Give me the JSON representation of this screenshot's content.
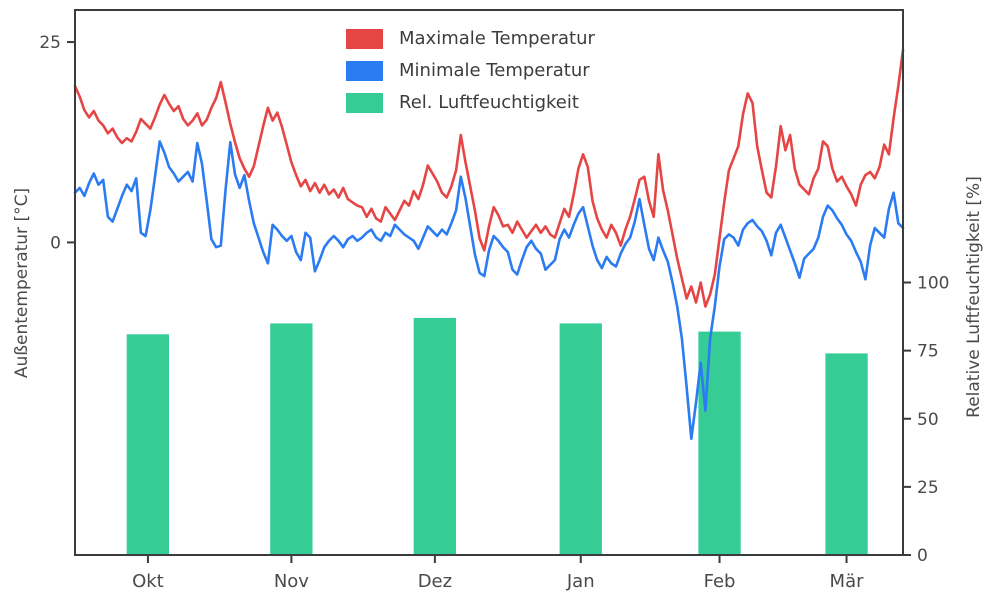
{
  "figure": {
    "background": "#ffffff",
    "text_color": "#4a4a4a",
    "spine_color": "#3b3b3b"
  },
  "chart_data": {
    "type": "mixed",
    "title": "",
    "left_axis": {
      "label": "Außentemperatur [°C]",
      "ticks": [
        0,
        25
      ],
      "min": -39,
      "max": 29
    },
    "right_axis": {
      "label": "Relative Luftfeuchtigkeit [%]",
      "ticks": [
        0,
        25,
        50,
        75,
        100
      ],
      "min": 0,
      "max": 200
    },
    "x_axis": {
      "bar_width_days": 9,
      "months": [
        {
          "label": "Okt",
          "start": 0,
          "days": 31
        },
        {
          "label": "Nov",
          "start": 31,
          "days": 30
        },
        {
          "label": "Dez",
          "start": 61,
          "days": 31
        },
        {
          "label": "Jan",
          "start": 92,
          "days": 31
        },
        {
          "label": "Feb",
          "start": 123,
          "days": 28
        },
        {
          "label": "Mär",
          "start": 151,
          "days": 26
        }
      ]
    },
    "series": [
      {
        "name": "Maximale Temperatur",
        "type": "line",
        "axis": "left",
        "color": "#e64545",
        "values": [
          19.5,
          18.2,
          16.5,
          15.6,
          16.4,
          15.2,
          14.6,
          13.6,
          14.2,
          13.1,
          12.4,
          13.0,
          12.6,
          13.8,
          15.4,
          14.8,
          14.2,
          15.6,
          17.2,
          18.4,
          17.3,
          16.4,
          17.0,
          15.4,
          14.6,
          15.2,
          16.1,
          14.6,
          15.3,
          16.8,
          18.0,
          20.0,
          17.5,
          14.8,
          12.5,
          10.5,
          9.2,
          8.2,
          9.5,
          12.0,
          14.5,
          16.8,
          15.2,
          16.2,
          14.4,
          12.2,
          10.0,
          8.4,
          7.0,
          7.8,
          6.4,
          7.4,
          6.2,
          7.2,
          6.0,
          6.6,
          5.6,
          6.8,
          5.4,
          5.0,
          4.6,
          4.4,
          3.2,
          4.2,
          3.0,
          2.6,
          4.4,
          3.6,
          2.8,
          4.0,
          5.2,
          4.6,
          6.4,
          5.4,
          7.2,
          9.6,
          8.6,
          7.6,
          6.2,
          5.6,
          7.0,
          9.0,
          13.4,
          10.0,
          7.0,
          4.0,
          0.5,
          -1.0,
          2.0,
          4.4,
          3.4,
          2.0,
          2.2,
          1.2,
          2.6,
          1.6,
          0.6,
          1.4,
          2.2,
          1.2,
          2.0,
          1.0,
          0.6,
          2.4,
          4.2,
          3.2,
          6.0,
          9.2,
          11.0,
          9.4,
          5.2,
          3.0,
          1.6,
          0.6,
          2.2,
          1.2,
          -0.4,
          1.6,
          3.2,
          5.4,
          7.8,
          8.2,
          5.2,
          3.2,
          11.0,
          6.5,
          4.0,
          1.0,
          -2.0,
          -4.5,
          -7.0,
          -5.5,
          -7.5,
          -5.0,
          -8.0,
          -6.5,
          -4.0,
          0.5,
          5.0,
          9.0,
          10.5,
          12.0,
          16.0,
          18.6,
          17.4,
          12.0,
          9.0,
          6.2,
          5.6,
          9.5,
          14.5,
          11.5,
          13.4,
          9.2,
          7.2,
          6.6,
          6.0,
          8.0,
          9.2,
          12.6,
          12.0,
          9.2,
          7.6,
          8.2,
          7.0,
          6.0,
          4.6,
          7.2,
          8.4,
          8.8,
          8.0,
          9.4,
          12.2,
          11.0,
          15.5,
          19.5,
          24.0
        ]
      },
      {
        "name": "Minimale Temperatur",
        "type": "line",
        "axis": "left",
        "color": "#2b7bf3",
        "values": [
          6.2,
          6.8,
          5.8,
          7.4,
          8.6,
          7.2,
          7.8,
          3.2,
          2.6,
          4.2,
          5.8,
          7.2,
          6.4,
          8.0,
          1.2,
          0.8,
          4.0,
          8.2,
          12.6,
          11.2,
          9.4,
          8.6,
          7.6,
          8.2,
          8.8,
          7.6,
          12.4,
          9.8,
          5.2,
          0.4,
          -0.6,
          -0.4,
          6.5,
          12.5,
          8.5,
          6.8,
          8.4,
          5.2,
          2.4,
          0.6,
          -1.2,
          -2.6,
          2.2,
          1.6,
          0.8,
          0.2,
          0.8,
          -1.2,
          -2.2,
          1.2,
          0.6,
          -3.6,
          -2.2,
          -0.6,
          0.2,
          0.8,
          0.2,
          -0.6,
          0.4,
          0.8,
          0.2,
          0.6,
          1.2,
          1.6,
          0.6,
          0.2,
          1.2,
          0.8,
          2.2,
          1.6,
          1.0,
          0.6,
          0.2,
          -0.8,
          0.6,
          2.0,
          1.4,
          0.8,
          1.6,
          1.0,
          2.4,
          4.0,
          8.2,
          5.5,
          2.0,
          -1.5,
          -3.8,
          -4.2,
          -1.0,
          0.8,
          0.2,
          -0.6,
          -1.2,
          -3.4,
          -4.0,
          -2.2,
          -0.6,
          0.2,
          -0.8,
          -1.4,
          -3.4,
          -2.8,
          -2.2,
          0.4,
          1.6,
          0.6,
          2.2,
          3.6,
          4.4,
          2.0,
          -0.4,
          -2.2,
          -3.2,
          -1.8,
          -2.6,
          -3.0,
          -1.4,
          -0.2,
          0.6,
          2.6,
          5.4,
          2.2,
          -0.8,
          -2.2,
          0.6,
          -1.0,
          -2.4,
          -5.0,
          -8.0,
          -12.0,
          -18.0,
          -24.5,
          -20.0,
          -15.0,
          -21.0,
          -12.0,
          -8.0,
          -3.0,
          0.4,
          1.0,
          0.6,
          -0.4,
          1.6,
          2.4,
          2.8,
          2.0,
          1.4,
          0.2,
          -1.6,
          1.2,
          2.2,
          0.6,
          -1.0,
          -2.6,
          -4.4,
          -2.0,
          -1.4,
          -0.8,
          0.6,
          3.2,
          4.6,
          4.0,
          3.0,
          2.2,
          1.0,
          0.2,
          -1.2,
          -2.4,
          -4.6,
          -0.4,
          1.8,
          1.2,
          0.6,
          4.2,
          6.2,
          2.4,
          1.8
        ]
      },
      {
        "name": "Rel. Luftfeuchtigkeit",
        "type": "bar",
        "axis": "right",
        "color": "#35cd95",
        "values": [
          81,
          85,
          87,
          85,
          82,
          74
        ]
      }
    ]
  }
}
